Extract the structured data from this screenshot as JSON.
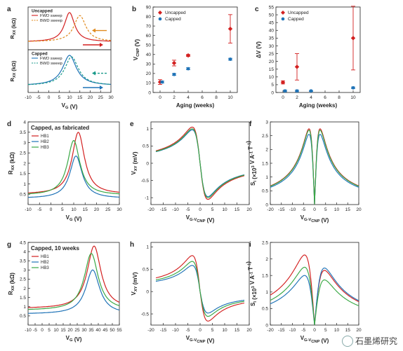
{
  "watermark": "石墨烯研究",
  "colors": {
    "red": "#d32020",
    "orange": "#e08a1e",
    "blue": "#1f73b7",
    "teal": "#1a9a8a",
    "green": "#3aa845",
    "axis": "#222222"
  },
  "chart_data": [
    {
      "id": "a",
      "type": "line",
      "panel_label": "a",
      "xlabel": "V_G (V)",
      "ylabel": "R_XX (kΩ)",
      "xlim": [
        -10,
        30
      ],
      "xticks": [
        -10,
        -5,
        0,
        5,
        10,
        15,
        20,
        25,
        30
      ],
      "subplots": [
        {
          "legend_title": "Uncapped",
          "series": [
            {
              "name": "FWD sweep",
              "color": "#d32020",
              "dash": false,
              "peak": 10,
              "width": 3,
              "base": 0.15,
              "amp": 1.0
            },
            {
              "name": "BWD sweep",
              "color": "#e08a1e",
              "dash": true,
              "peak": 15,
              "width": 3.5,
              "base": 0.15,
              "amp": 0.9
            }
          ]
        },
        {
          "legend_title": "Capped",
          "series": [
            {
              "name": "FWD sweep",
              "color": "#1f73b7",
              "dash": false,
              "peak": 10,
              "width": 4,
              "base": 0.12,
              "amp": 1.0
            },
            {
              "name": "BWD sweep",
              "color": "#1a9a8a",
              "dash": true,
              "peak": 11,
              "width": 4,
              "base": 0.12,
              "amp": 0.95
            }
          ]
        }
      ]
    },
    {
      "id": "b",
      "type": "scatter",
      "panel_label": "b",
      "xlabel": "Aging (weeks)",
      "ylabel": "V_CNP (V)",
      "xlim": [
        -1,
        11
      ],
      "ylim": [
        0,
        90
      ],
      "xticks": [
        0,
        2,
        4,
        6,
        8,
        10
      ],
      "yticks": [
        0,
        10,
        20,
        30,
        40,
        50,
        60,
        70,
        80,
        90
      ],
      "series": [
        {
          "name": "Uncapped",
          "color": "#d32020",
          "marker": "diamond",
          "x": [
            0,
            2,
            4,
            10
          ],
          "y": [
            11,
            31,
            39,
            67
          ],
          "err": [
            2.5,
            3,
            1,
            15
          ]
        },
        {
          "name": "Capped",
          "color": "#1f73b7",
          "marker": "circle",
          "x": [
            0.3,
            2,
            4,
            10
          ],
          "y": [
            11,
            19,
            25,
            35
          ],
          "err": [
            1,
            1,
            1,
            1
          ]
        }
      ]
    },
    {
      "id": "c",
      "type": "scatter",
      "panel_label": "c",
      "xlabel": "Aging (weeks)",
      "ylabel": "ΔV (V)",
      "xlim": [
        -1,
        11
      ],
      "ylim": [
        0,
        55
      ],
      "xticks": [
        0,
        2,
        4,
        6,
        8,
        10
      ],
      "yticks": [
        0,
        5,
        10,
        15,
        20,
        25,
        30,
        35,
        40,
        45,
        50,
        55
      ],
      "series": [
        {
          "name": "Uncapped",
          "color": "#d32020",
          "marker": "diamond",
          "x": [
            0,
            2,
            10
          ],
          "y": [
            6.5,
            16.5,
            35
          ],
          "err": [
            1,
            8.5,
            20.5
          ]
        },
        {
          "name": "Capped",
          "color": "#1f73b7",
          "marker": "circle",
          "x": [
            0.3,
            2,
            4,
            10
          ],
          "y": [
            1,
            1,
            1,
            3
          ],
          "err": [
            0.5,
            0.5,
            0.3,
            0.5
          ]
        }
      ]
    },
    {
      "id": "d",
      "type": "line",
      "panel_label": "d",
      "title": "Capped, as fabricated",
      "xlabel": "V_G (V)",
      "ylabel": "R_XX (kΩ)",
      "xlim": [
        -10,
        30
      ],
      "ylim": [
        0,
        4
      ],
      "xticks": [
        -10,
        -5,
        0,
        5,
        10,
        15,
        20,
        25,
        30
      ],
      "yticks": [
        0.5,
        1.0,
        1.5,
        2.0,
        2.5,
        3.0,
        3.5,
        4.0
      ],
      "series": [
        {
          "name": "HB1",
          "color": "#d32020",
          "peak": 12,
          "max": 3.5,
          "base": 0.5,
          "width": 3.3
        },
        {
          "name": "HB2",
          "color": "#1f73b7",
          "peak": 11,
          "max": 2.35,
          "base": 0.3,
          "width": 3.3
        },
        {
          "name": "HB3",
          "color": "#3aa845",
          "peak": 10,
          "max": 3.1,
          "base": 0.45,
          "width": 3.3
        }
      ]
    },
    {
      "id": "e",
      "type": "line",
      "panel_label": "e",
      "xlabel": "V_G-V_CNP (V)",
      "ylabel": "V_XY (mV)",
      "xlim": [
        -20,
        20
      ],
      "ylim": [
        -1.2,
        1.2
      ],
      "xticks": [
        -20,
        -15,
        -10,
        -5,
        0,
        5,
        10,
        15,
        20
      ],
      "yticks": [
        -1.0,
        -0.5,
        0.0,
        0.5,
        1.0
      ],
      "series": [
        {
          "name": "HB1",
          "color": "#d32020",
          "amp": 1.05
        },
        {
          "name": "HB2",
          "color": "#1f73b7",
          "amp": 0.97
        },
        {
          "name": "HB3",
          "color": "#3aa845",
          "amp": 1.0
        }
      ]
    },
    {
      "id": "f",
      "type": "line",
      "panel_label": "f",
      "xlabel": "V_G-V_CNP (V)",
      "ylabel": "S_I (×10^3 V A^-1 T^-1)",
      "xlim": [
        -20,
        20
      ],
      "ylim": [
        0,
        3
      ],
      "xticks": [
        -20,
        -15,
        -10,
        -5,
        0,
        5,
        10,
        15,
        20
      ],
      "yticks": [
        0.0,
        0.5,
        1.0,
        1.5,
        2.0,
        2.5,
        3.0
      ],
      "series": [
        {
          "name": "HB1",
          "color": "#d32020",
          "amp": 2.75
        },
        {
          "name": "HB2",
          "color": "#1f73b7",
          "amp": 2.55
        },
        {
          "name": "HB3",
          "color": "#3aa845",
          "amp": 2.7
        }
      ]
    },
    {
      "id": "g",
      "type": "line",
      "panel_label": "g",
      "title": "Capped, 10 weeks",
      "xlabel": "V_G (V)",
      "ylabel": "R_XX (kΩ)",
      "xlim": [
        -10,
        55
      ],
      "ylim": [
        0,
        4.5
      ],
      "xticks": [
        -10,
        -5,
        0,
        5,
        10,
        15,
        20,
        25,
        30,
        35,
        40,
        45,
        50,
        55
      ],
      "yticks": [
        0.5,
        1.0,
        1.5,
        2.0,
        2.5,
        3.0,
        3.5,
        4.0,
        4.5
      ],
      "series": [
        {
          "name": "HB1",
          "color": "#d32020",
          "peak": 37,
          "max": 4.3,
          "base": 0.9,
          "width": 6
        },
        {
          "name": "HB2",
          "color": "#1f73b7",
          "peak": 36,
          "max": 3.0,
          "base": 0.6,
          "width": 6
        },
        {
          "name": "HB3",
          "color": "#3aa845",
          "peak": 35,
          "max": 3.9,
          "base": 0.8,
          "width": 6
        }
      ]
    },
    {
      "id": "h",
      "type": "line",
      "panel_label": "h",
      "xlabel": "V_G-V_CNP (V)",
      "ylabel": "V_XY (mV)",
      "xlim": [
        -20,
        20
      ],
      "ylim": [
        -0.75,
        1.1
      ],
      "xticks": [
        -20,
        -15,
        -10,
        -5,
        0,
        5,
        10,
        15,
        20
      ],
      "yticks": [
        -0.5,
        0.0,
        0.5,
        1.0
      ],
      "series": [
        {
          "name": "HB1",
          "color": "#d32020",
          "amp": 0.8
        },
        {
          "name": "HB2",
          "color": "#1f73b7",
          "amp": 0.58
        },
        {
          "name": "HB3",
          "color": "#3aa845",
          "amp": 0.67
        }
      ]
    },
    {
      "id": "i",
      "type": "line",
      "panel_label": "i",
      "xlabel": "V_G-V_CNP (V)",
      "ylabel": "S_I (×10^3 V A^-1 T^-1)",
      "xlim": [
        -20,
        20
      ],
      "ylim": [
        0,
        2.5
      ],
      "xticks": [
        -20,
        -15,
        -10,
        -5,
        0,
        5,
        10,
        15,
        20
      ],
      "yticks": [
        0.0,
        0.5,
        1.0,
        1.5,
        2.0,
        2.5
      ],
      "series": [
        {
          "name": "HB1",
          "color": "#d32020",
          "amp": 2.12
        },
        {
          "name": "HB2",
          "color": "#1f73b7",
          "amp": 1.5
        },
        {
          "name": "HB3",
          "color": "#3aa845",
          "amp": 1.75
        }
      ]
    }
  ]
}
